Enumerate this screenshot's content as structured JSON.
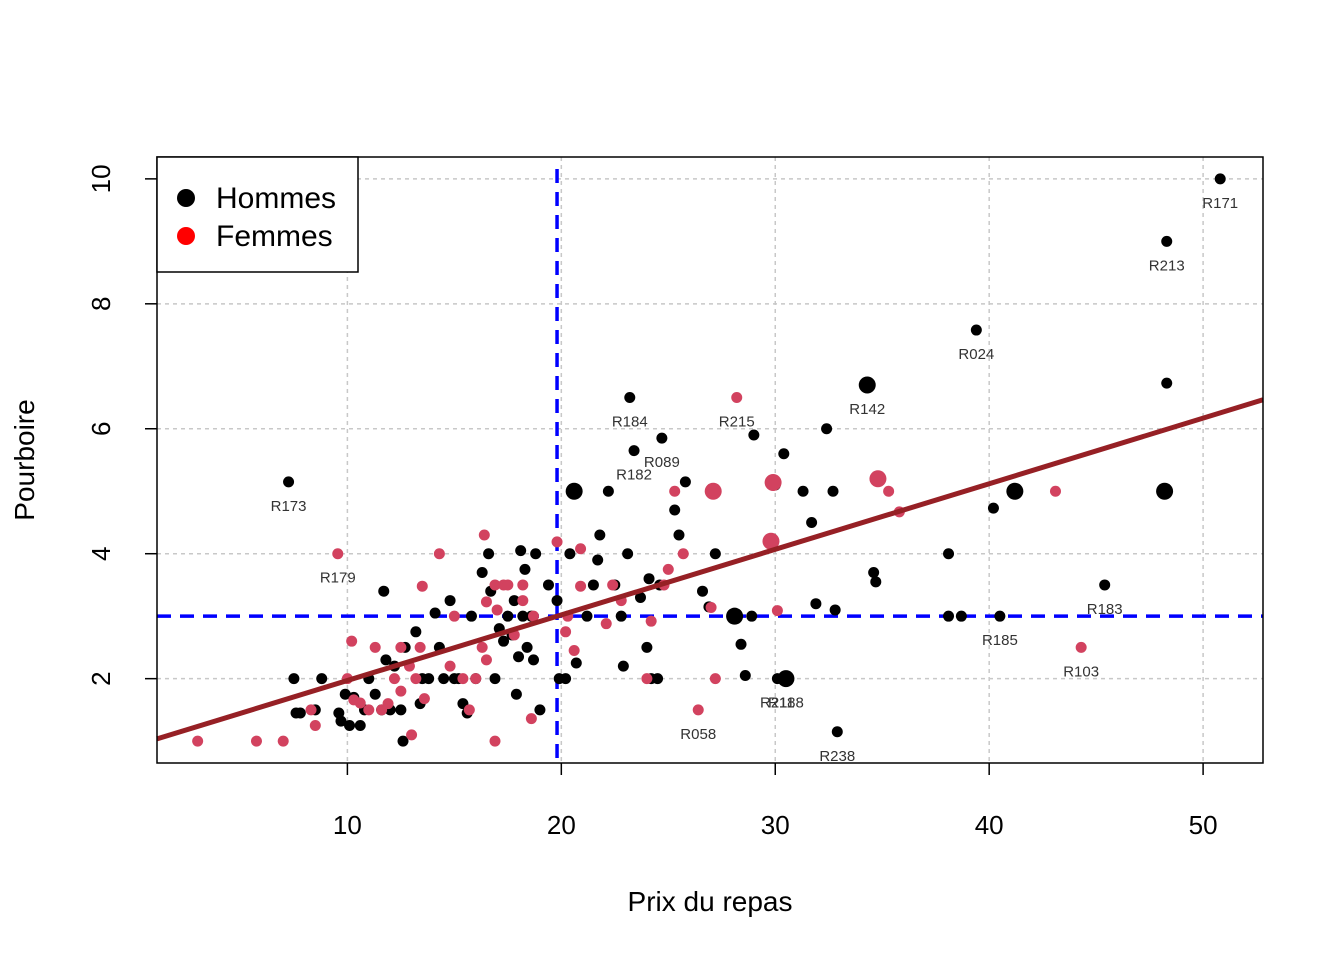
{
  "chart_data": {
    "type": "scatter",
    "xlabel": "Prix du repas",
    "ylabel": "Pourboire",
    "xlim": [
      1.1,
      52.8
    ],
    "ylim": [
      0.65,
      10.35
    ],
    "xticks": [
      10,
      20,
      30,
      40,
      50
    ],
    "yticks": [
      2,
      4,
      6,
      8,
      10
    ],
    "grid": true,
    "legend": {
      "position": "top-left",
      "entries": [
        {
          "label": "Hommes",
          "color": "#000000"
        },
        {
          "label": "Femmes",
          "color": "#ff0000"
        }
      ]
    },
    "colors": {
      "Hommes": "#000000",
      "Femmes": "#d2425f",
      "regression": "#962025",
      "reference": "#0000ff",
      "grid": "#c8c8c8"
    },
    "reference_lines": {
      "x": 19.8,
      "y": 3.0
    },
    "regression_line": {
      "intercept": 0.92,
      "slope": 0.105
    },
    "series": [
      {
        "name": "Hommes",
        "points": [
          [
            7.25,
            5.15,
            1
          ],
          [
            7.5,
            2.0,
            1
          ],
          [
            7.6,
            1.45,
            1
          ],
          [
            7.8,
            1.45,
            1
          ],
          [
            8.5,
            1.5,
            1
          ],
          [
            8.8,
            2.0,
            1
          ],
          [
            9.6,
            1.45,
            1
          ],
          [
            9.7,
            1.32,
            1
          ],
          [
            9.9,
            1.75,
            1
          ],
          [
            10.1,
            1.25,
            1
          ],
          [
            10.3,
            1.7,
            1
          ],
          [
            10.6,
            1.25,
            1
          ],
          [
            10.8,
            1.5,
            1
          ],
          [
            11.0,
            2.0,
            1
          ],
          [
            11.3,
            1.75,
            1
          ],
          [
            11.6,
            1.5,
            1
          ],
          [
            11.7,
            3.4,
            1
          ],
          [
            11.8,
            2.3,
            1
          ],
          [
            12.0,
            1.5,
            1
          ],
          [
            12.2,
            2.2,
            1
          ],
          [
            12.5,
            1.5,
            1
          ],
          [
            12.6,
            1.0,
            1
          ],
          [
            12.7,
            2.5,
            1
          ],
          [
            13.2,
            2.75,
            1
          ],
          [
            13.4,
            1.6,
            1
          ],
          [
            13.5,
            2.0,
            1
          ],
          [
            13.8,
            2.0,
            1
          ],
          [
            14.1,
            3.05,
            1
          ],
          [
            14.3,
            2.5,
            1
          ],
          [
            14.5,
            2.0,
            1
          ],
          [
            14.8,
            3.25,
            1
          ],
          [
            15.0,
            2.0,
            1
          ],
          [
            15.2,
            2.0,
            1
          ],
          [
            15.4,
            1.6,
            1
          ],
          [
            15.6,
            1.45,
            1
          ],
          [
            15.8,
            3.0,
            1
          ],
          [
            16.0,
            2.0,
            1
          ],
          [
            16.3,
            3.7,
            1
          ],
          [
            16.6,
            4.0,
            1
          ],
          [
            16.7,
            3.4,
            1
          ],
          [
            16.9,
            2.0,
            1
          ],
          [
            17.1,
            2.8,
            1
          ],
          [
            17.3,
            2.6,
            1
          ],
          [
            17.5,
            3.0,
            1
          ],
          [
            17.7,
            2.7,
            1
          ],
          [
            17.8,
            3.25,
            1
          ],
          [
            17.9,
            1.75,
            1
          ],
          [
            18.0,
            2.35,
            1
          ],
          [
            18.1,
            4.05,
            1
          ],
          [
            18.2,
            3.0,
            1
          ],
          [
            18.3,
            3.75,
            1
          ],
          [
            18.4,
            2.5,
            1
          ],
          [
            18.6,
            3.0,
            1
          ],
          [
            18.7,
            2.3,
            1
          ],
          [
            18.8,
            4.0,
            1
          ],
          [
            19.0,
            1.5,
            1
          ],
          [
            19.4,
            3.5,
            1
          ],
          [
            19.8,
            3.25,
            1
          ],
          [
            19.9,
            2.0,
            1
          ],
          [
            20.2,
            2.0,
            1
          ],
          [
            20.4,
            4.0,
            1
          ],
          [
            20.6,
            5.0,
            2
          ],
          [
            20.7,
            2.25,
            1
          ],
          [
            21.2,
            3.0,
            1
          ],
          [
            21.5,
            3.5,
            1
          ],
          [
            21.7,
            3.9,
            1
          ],
          [
            21.8,
            4.3,
            1
          ],
          [
            22.2,
            5.0,
            1
          ],
          [
            22.5,
            3.5,
            1
          ],
          [
            22.8,
            3.0,
            1
          ],
          [
            22.9,
            2.2,
            1
          ],
          [
            23.1,
            4.0,
            1
          ],
          [
            23.2,
            6.5,
            1
          ],
          [
            23.4,
            5.65,
            1
          ],
          [
            23.7,
            3.3,
            1
          ],
          [
            24.0,
            2.5,
            1
          ],
          [
            24.1,
            3.6,
            1
          ],
          [
            24.2,
            2.0,
            1
          ],
          [
            24.5,
            2.0,
            1
          ],
          [
            24.6,
            3.5,
            1
          ],
          [
            24.7,
            5.85,
            1
          ],
          [
            25.3,
            4.7,
            1
          ],
          [
            25.5,
            4.3,
            1
          ],
          [
            25.8,
            5.15,
            1
          ],
          [
            26.6,
            3.4,
            1
          ],
          [
            26.9,
            3.15,
            1
          ],
          [
            27.2,
            4.0,
            1
          ],
          [
            28.1,
            3.0,
            2
          ],
          [
            28.4,
            2.55,
            1
          ],
          [
            28.6,
            2.05,
            1
          ],
          [
            28.9,
            3.0,
            1
          ],
          [
            29.0,
            5.9,
            1
          ],
          [
            30.0,
            5.1,
            1
          ],
          [
            30.1,
            2.0,
            1
          ],
          [
            30.4,
            5.6,
            1
          ],
          [
            30.5,
            2.0,
            2
          ],
          [
            31.3,
            5.0,
            1
          ],
          [
            31.7,
            4.5,
            1
          ],
          [
            31.9,
            3.2,
            1
          ],
          [
            32.4,
            6.0,
            1
          ],
          [
            32.7,
            5.0,
            1
          ],
          [
            32.8,
            3.1,
            1
          ],
          [
            32.9,
            1.15,
            1
          ],
          [
            34.3,
            6.7,
            2
          ],
          [
            34.6,
            3.7,
            1
          ],
          [
            34.7,
            3.55,
            1
          ],
          [
            38.1,
            4.0,
            1
          ],
          [
            38.1,
            3.0,
            1
          ],
          [
            38.7,
            3.0,
            1
          ],
          [
            39.4,
            7.58,
            1
          ],
          [
            40.2,
            4.73,
            1
          ],
          [
            40.5,
            3.0,
            1
          ],
          [
            41.2,
            5.0,
            2
          ],
          [
            45.4,
            3.5,
            1
          ],
          [
            48.2,
            5.0,
            2
          ],
          [
            48.3,
            6.73,
            1
          ],
          [
            48.3,
            9.0,
            1
          ],
          [
            50.8,
            10.0,
            1
          ]
        ]
      },
      {
        "name": "Femmes",
        "points": [
          [
            3.0,
            1.0,
            1
          ],
          [
            5.75,
            1.0,
            1
          ],
          [
            7.0,
            1.0,
            1
          ],
          [
            8.3,
            1.5,
            1
          ],
          [
            8.5,
            1.25,
            1
          ],
          [
            9.55,
            4.0,
            1
          ],
          [
            10.0,
            2.0,
            1
          ],
          [
            10.2,
            2.6,
            1
          ],
          [
            10.3,
            1.66,
            1
          ],
          [
            10.6,
            1.61,
            1
          ],
          [
            11.0,
            1.5,
            1
          ],
          [
            11.3,
            2.5,
            1
          ],
          [
            11.6,
            1.5,
            1
          ],
          [
            11.9,
            1.6,
            1
          ],
          [
            12.2,
            2.0,
            1
          ],
          [
            12.5,
            1.8,
            1
          ],
          [
            12.5,
            2.5,
            1
          ],
          [
            12.9,
            2.2,
            1
          ],
          [
            13.0,
            1.1,
            1
          ],
          [
            13.2,
            2.0,
            1
          ],
          [
            13.4,
            2.5,
            1
          ],
          [
            13.5,
            3.48,
            1
          ],
          [
            13.6,
            1.68,
            1
          ],
          [
            14.3,
            4.0,
            1
          ],
          [
            14.8,
            2.2,
            1
          ],
          [
            15.0,
            3.0,
            1
          ],
          [
            15.4,
            2.0,
            1
          ],
          [
            15.7,
            1.5,
            1
          ],
          [
            16.0,
            2.0,
            1
          ],
          [
            16.3,
            2.5,
            1
          ],
          [
            16.4,
            4.3,
            1
          ],
          [
            16.5,
            3.23,
            1
          ],
          [
            16.5,
            2.3,
            1
          ],
          [
            16.9,
            3.5,
            1
          ],
          [
            16.9,
            1.0,
            1
          ],
          [
            17.0,
            3.1,
            1
          ],
          [
            17.3,
            3.5,
            1
          ],
          [
            17.5,
            3.5,
            1
          ],
          [
            17.8,
            2.7,
            1
          ],
          [
            18.2,
            3.25,
            1
          ],
          [
            18.2,
            3.5,
            1
          ],
          [
            18.6,
            1.36,
            1
          ],
          [
            18.7,
            3.0,
            1
          ],
          [
            19.8,
            4.19,
            1
          ],
          [
            20.2,
            2.75,
            1
          ],
          [
            20.3,
            3.0,
            1
          ],
          [
            20.6,
            2.45,
            1
          ],
          [
            20.9,
            3.48,
            1
          ],
          [
            20.9,
            4.08,
            1
          ],
          [
            22.1,
            2.88,
            1
          ],
          [
            22.4,
            3.5,
            1
          ],
          [
            22.8,
            3.25,
            1
          ],
          [
            24.0,
            2.0,
            1
          ],
          [
            24.2,
            2.92,
            1
          ],
          [
            24.8,
            3.5,
            1
          ],
          [
            25.0,
            3.75,
            1
          ],
          [
            25.3,
            5.0,
            1
          ],
          [
            25.7,
            4.0,
            1
          ],
          [
            26.4,
            1.5,
            1
          ],
          [
            27.0,
            3.14,
            1
          ],
          [
            27.1,
            5.0,
            2
          ],
          [
            27.2,
            2.0,
            1
          ],
          [
            28.2,
            6.5,
            1
          ],
          [
            29.8,
            4.2,
            2
          ],
          [
            29.9,
            5.14,
            2
          ],
          [
            30.1,
            3.09,
            1
          ],
          [
            34.8,
            5.2,
            2
          ],
          [
            35.3,
            5.0,
            1
          ],
          [
            35.8,
            4.67,
            1
          ],
          [
            43.1,
            5.0,
            1
          ],
          [
            44.3,
            2.5,
            1
          ]
        ]
      }
    ],
    "annotations": [
      {
        "text": "R171",
        "x": 50.8,
        "y": 10.0
      },
      {
        "text": "R213",
        "x": 48.3,
        "y": 9.0
      },
      {
        "text": "R024",
        "x": 39.4,
        "y": 7.58
      },
      {
        "text": "R142",
        "x": 34.3,
        "y": 6.7
      },
      {
        "text": "R184",
        "x": 23.2,
        "y": 6.5
      },
      {
        "text": "R215",
        "x": 28.2,
        "y": 6.5
      },
      {
        "text": "R089",
        "x": 24.7,
        "y": 5.85
      },
      {
        "text": "R182",
        "x": 23.4,
        "y": 5.65
      },
      {
        "text": "R173",
        "x": 7.25,
        "y": 5.15
      },
      {
        "text": "R179",
        "x": 9.55,
        "y": 4.0
      },
      {
        "text": "R183",
        "x": 45.4,
        "y": 3.5
      },
      {
        "text": "R185",
        "x": 40.5,
        "y": 3.0
      },
      {
        "text": "R103",
        "x": 44.3,
        "y": 2.5
      },
      {
        "text": "R238",
        "x": 32.9,
        "y": 1.15
      },
      {
        "text": "R058",
        "x": 26.4,
        "y": 1.5
      },
      {
        "text": "R188",
        "x": 30.5,
        "y": 2.0
      },
      {
        "text": "R211",
        "x": 30.1,
        "y": 2.0
      }
    ]
  }
}
